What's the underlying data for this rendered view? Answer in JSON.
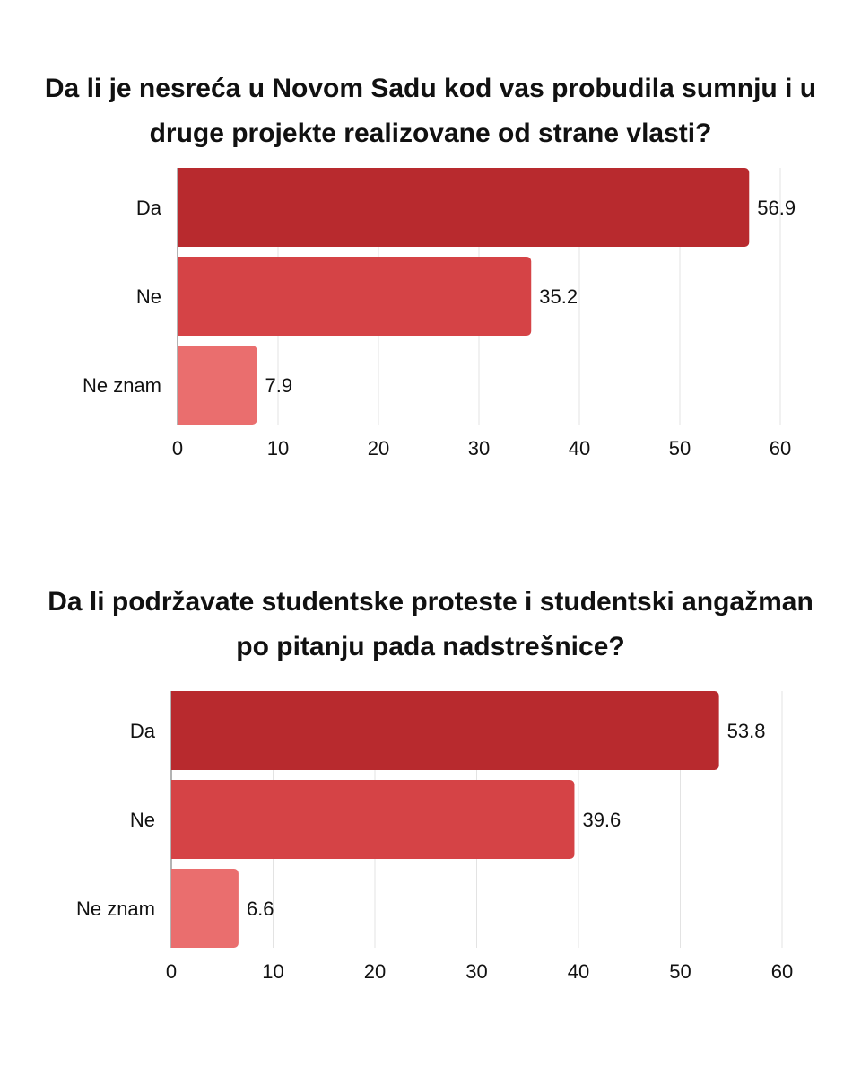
{
  "chart_data": [
    {
      "type": "bar",
      "orientation": "horizontal",
      "title": "Da li je nesreća u Novom Sadu kod vas probudila sumnju i u druge projekte realizovane od strane vlasti?",
      "categories": [
        "Da",
        "Ne",
        "Ne znam"
      ],
      "values": [
        56.9,
        35.2,
        7.9
      ],
      "value_labels": [
        "56.9",
        "35.2",
        "7.9"
      ],
      "xticks": [
        "0",
        "10",
        "20",
        "30",
        "40",
        "50",
        "60"
      ],
      "xlim": [
        0,
        60
      ],
      "grid": "vertical",
      "colors": [
        "#b82a2e",
        "#d54346",
        "#ea6e6e"
      ]
    },
    {
      "type": "bar",
      "orientation": "horizontal",
      "title": "Da li podržavate studentske proteste i studentski angažman po pitanju pada nadstrešnice?",
      "categories": [
        "Da",
        "Ne",
        "Ne znam"
      ],
      "values": [
        53.8,
        39.6,
        6.6
      ],
      "value_labels": [
        "53.8",
        "39.6",
        "6.6"
      ],
      "xticks": [
        "0",
        "10",
        "20",
        "30",
        "40",
        "50",
        "60"
      ],
      "xlim": [
        0,
        60
      ],
      "grid": "vertical",
      "colors": [
        "#b82a2e",
        "#d54346",
        "#ea6e6e"
      ]
    }
  ]
}
